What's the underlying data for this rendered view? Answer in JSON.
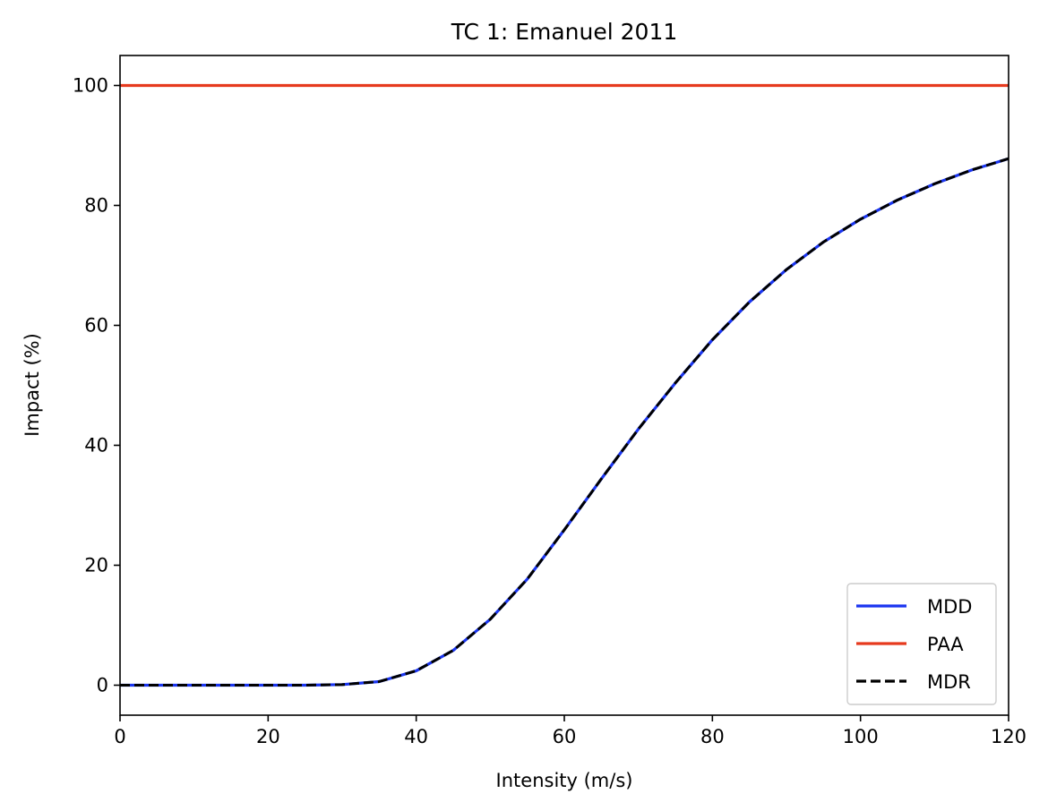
{
  "chart_data": {
    "type": "line",
    "title": "TC 1: Emanuel 2011",
    "xlabel": "Intensity (m/s)",
    "ylabel": "Impact (%)",
    "xlim": [
      0,
      120
    ],
    "ylim": [
      -5,
      105
    ],
    "xticks": [
      0,
      20,
      40,
      60,
      80,
      100,
      120
    ],
    "yticks": [
      0,
      20,
      40,
      60,
      80,
      100
    ],
    "grid": false,
    "legend_position": "lower-right",
    "x": [
      0,
      5,
      10,
      15,
      20,
      25,
      30,
      35,
      40,
      45,
      50,
      55,
      60,
      65,
      70,
      75,
      80,
      85,
      90,
      95,
      100,
      105,
      110,
      115,
      120
    ],
    "series": [
      {
        "name": "MDD",
        "color": "#1a35f0",
        "style": "solid",
        "values": [
          0,
          0,
          0,
          0,
          0,
          0,
          0.1,
          0.6,
          2.4,
          5.8,
          11.0,
          17.7,
          25.9,
          34.4,
          42.7,
          50.4,
          57.6,
          63.9,
          69.3,
          73.9,
          77.7,
          80.9,
          83.6,
          85.9,
          87.8
        ]
      },
      {
        "name": "PAA",
        "color": "#e63a1e",
        "style": "solid",
        "values": [
          100,
          100,
          100,
          100,
          100,
          100,
          100,
          100,
          100,
          100,
          100,
          100,
          100,
          100,
          100,
          100,
          100,
          100,
          100,
          100,
          100,
          100,
          100,
          100,
          100
        ]
      },
      {
        "name": "MDR",
        "color": "#000000",
        "style": "dashed",
        "values": [
          0,
          0,
          0,
          0,
          0,
          0,
          0.1,
          0.6,
          2.4,
          5.8,
          11.0,
          17.7,
          25.9,
          34.4,
          42.7,
          50.4,
          57.6,
          63.9,
          69.3,
          73.9,
          77.7,
          80.9,
          83.6,
          85.9,
          87.8
        ]
      }
    ]
  }
}
